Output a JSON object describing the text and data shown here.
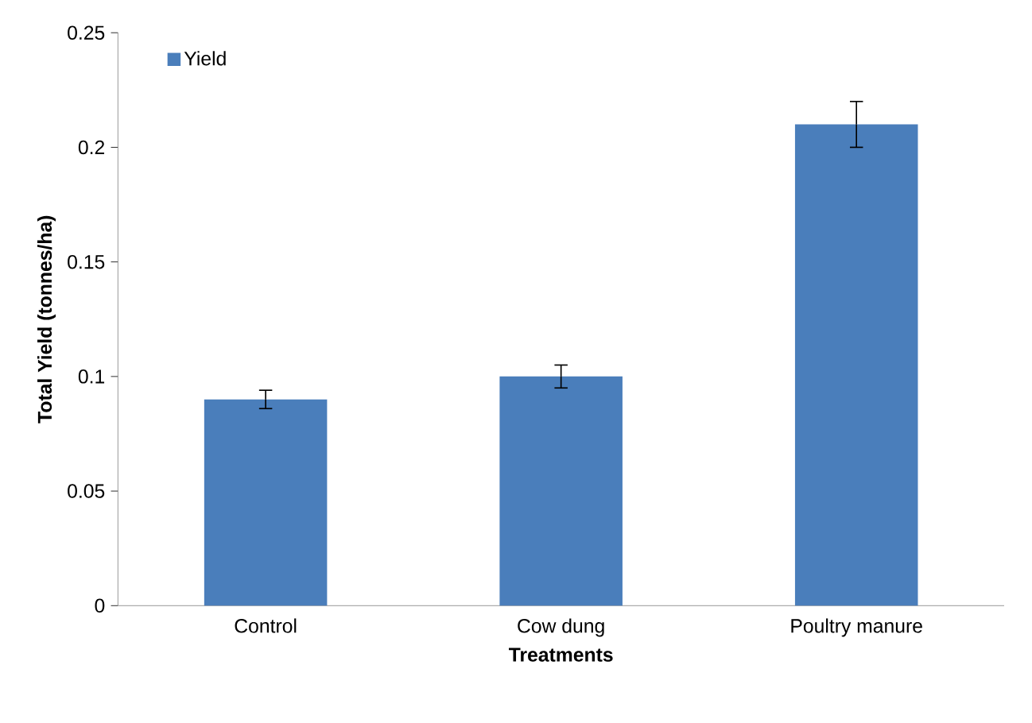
{
  "chart_data": {
    "type": "bar",
    "xlabel": "Treatments",
    "ylabel": "Total Yield (tonnes/ha)",
    "categories": [
      "Control",
      "Cow dung",
      "Poultry manure"
    ],
    "series": [
      {
        "name": "Yield",
        "color": "#4a7ebb",
        "values": [
          0.09,
          0.1,
          0.21
        ],
        "errors": [
          0.004,
          0.005,
          0.01
        ]
      }
    ],
    "ylim": [
      0,
      0.25
    ],
    "yticks": [
      0,
      0.05,
      0.1,
      0.15,
      0.2,
      0.25
    ],
    "legend": "top left"
  }
}
